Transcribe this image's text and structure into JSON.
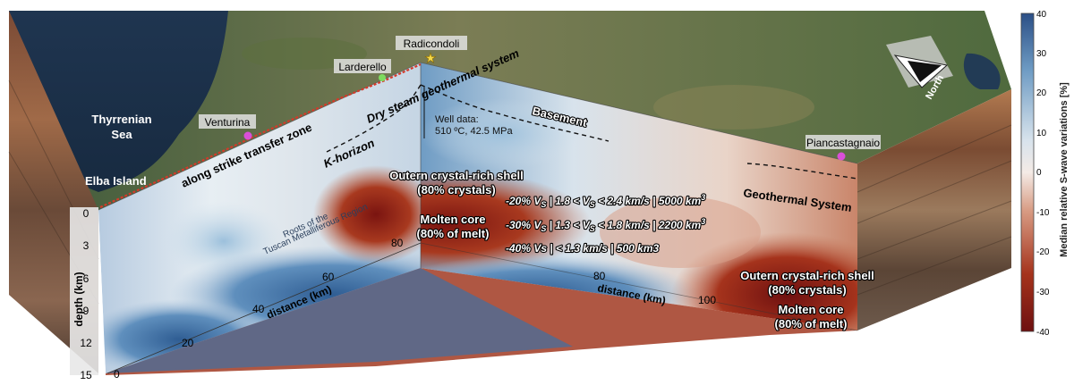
{
  "places": {
    "thyrrenian_sea_line1": "Thyrrenian",
    "thyrrenian_sea_line2": "Sea",
    "elba_island": "Elba Island",
    "venturina": "Venturina",
    "larderello": "Larderello",
    "radicondoli": "Radicondoli",
    "piancastagnaio": "Piancastagnaio",
    "north": "North"
  },
  "labels": {
    "along_strike": "along strike transfer zone",
    "k_horizon": "K-horizon",
    "dry_steam": "Dry steam geothermal system",
    "basement": "Basement",
    "well_line1": "Well data:",
    "well_line2": "510 ºC, 42.5 MPa",
    "roots_line1": "Roots of the",
    "roots_line2": "Tuscan Metalliferous Region",
    "shell1_line1": "Outern crystal-rich shell",
    "shell1_line2": "(80% crystals)",
    "core1_line1": "Molten core",
    "core1_line2": "(80% of melt)",
    "geo_system": "Geothermal System",
    "shell2_line1": "Outern crystal-rich shell",
    "shell2_line2": "(80% crystals)",
    "core2_line1": "Molten core",
    "core2_line2": "(80% of melt)",
    "vs1": "-20% V",
    "vs1_rest": " | 1.8 < V",
    "vs1_tail": " < 2.4 km/s | 5000 km",
    "vs2": "-30% V",
    "vs2_rest": " | 1.3 < V",
    "vs2_tail": " < 1.8 km/s | 2200 km",
    "vs3": "-40% Vs | < 1.3 km/s | 500 km3",
    "sub_s": "S",
    "sup_3": "3"
  },
  "axes": {
    "depth_label": "depth (km)",
    "depth_ticks": [
      "0",
      "3",
      "6",
      "9",
      "12",
      "15"
    ],
    "distance_label_1": "distance (km)",
    "distance_ticks_1": [
      "0",
      "20",
      "40",
      "60",
      "80"
    ],
    "distance_label_2": "distance (km)",
    "distance_ticks_2": [
      "80",
      "100"
    ]
  },
  "colorbar": {
    "label": "Median relative S-wave variations [%]",
    "ticks": [
      "40",
      "30",
      "20",
      "10",
      "0",
      "-10",
      "-20",
      "-30",
      "-40"
    ],
    "colors": [
      "#2b4f86",
      "#6f9cc4",
      "#d8e3ec",
      "#f4ebe6",
      "#d89c84",
      "#a5331c",
      "#6e1010"
    ]
  }
}
